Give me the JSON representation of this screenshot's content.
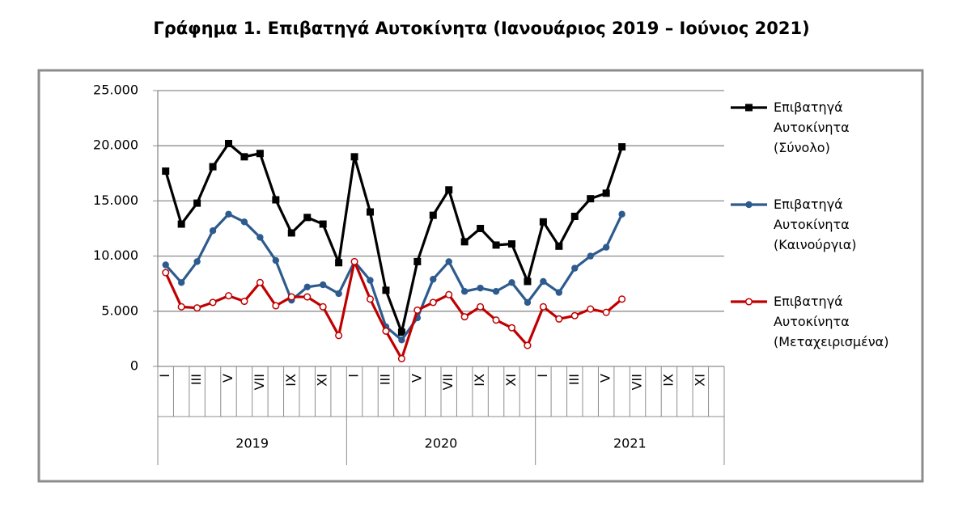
{
  "chart_data": {
    "type": "line",
    "title": "Γράφημα 1. Επιβατηγά Αυτοκίνητα (Ιανουάριος 2019 – Ιούνιος 2021)",
    "categories": [
      "I",
      null,
      "III",
      null,
      "V",
      null,
      "VII",
      null,
      "IX",
      null,
      "XI",
      null,
      "I",
      null,
      "III",
      null,
      "V",
      null,
      "VII",
      null,
      "IX",
      null,
      "XI",
      null,
      "I",
      null,
      "III",
      null,
      "V",
      null,
      "VII",
      null,
      "IX",
      null,
      "XI",
      null
    ],
    "x_groups": [
      "2019",
      "2020",
      "2021"
    ],
    "series": [
      {
        "name": "Επιβατηγά Αυτοκίνητα (Σύνολο)",
        "color": "#000000",
        "marker": "square",
        "values": [
          17700,
          12900,
          14800,
          18100,
          20200,
          19000,
          19300,
          15100,
          12100,
          13500,
          12900,
          9400,
          19000,
          14000,
          6900,
          3100,
          9500,
          13700,
          16000,
          11300,
          12500,
          11000,
          11100,
          7700,
          13100,
          10900,
          13600,
          15200,
          15700,
          19900,
          null,
          null,
          null,
          null,
          null,
          null
        ]
      },
      {
        "name": "Επιβατηγά Αυτοκίνητα (Καινούργια)",
        "color": "#2e5b8e",
        "marker": "circle",
        "values": [
          9200,
          7600,
          9500,
          12300,
          13800,
          13100,
          11700,
          9600,
          6000,
          7200,
          7400,
          6600,
          9500,
          7800,
          3600,
          2400,
          4400,
          7900,
          9500,
          6800,
          7100,
          6800,
          7600,
          5800,
          7700,
          6700,
          8900,
          10000,
          10800,
          13800,
          null,
          null,
          null,
          null,
          null,
          null
        ]
      },
      {
        "name": "Επιβατηγά Αυτοκίνητα (Μεταχειρισμένα)",
        "color": "#c00000",
        "marker": "open-circle",
        "values": [
          8500,
          5400,
          5300,
          5800,
          6400,
          5900,
          7600,
          5500,
          6300,
          6300,
          5400,
          2800,
          9500,
          6100,
          3200,
          700,
          5100,
          5800,
          6500,
          4500,
          5400,
          4200,
          3500,
          1900,
          5400,
          4300,
          4600,
          5200,
          4900,
          6100,
          null,
          null,
          null,
          null,
          null,
          null
        ]
      }
    ],
    "ylim": [
      0,
      25000
    ],
    "yticks": [
      0,
      {
        "value": 5000,
        "label": "5.000"
      },
      {
        "value": 10000,
        "label": "10.000"
      },
      {
        "value": 15000,
        "label": "15.000"
      },
      {
        "value": 20000,
        "label": "20.000"
      },
      {
        "value": 25000,
        "label": "25.000"
      }
    ],
    "grid": true,
    "legend": "right"
  }
}
